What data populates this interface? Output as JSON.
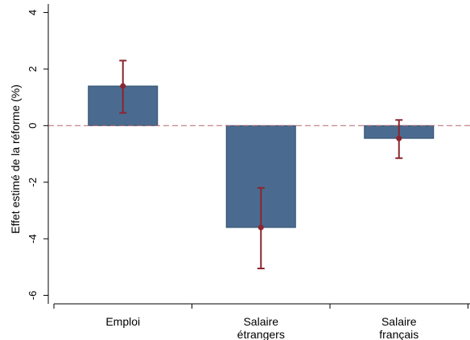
{
  "chart_data": {
    "type": "bar",
    "categories": [
      [
        "Emploi"
      ],
      [
        "Salaire",
        "étrangers"
      ],
      [
        "Salaire",
        "français"
      ]
    ],
    "values": [
      1.4,
      -3.6,
      -0.45
    ],
    "ci_low": [
      0.45,
      -5.05,
      -1.15
    ],
    "ci_high": [
      2.3,
      -2.2,
      0.2
    ],
    "ylabel": "Effet estimé de la réforme (%)",
    "yticks": [
      -6,
      -4,
      -2,
      0,
      2,
      4
    ],
    "ylim": [
      -6.3,
      4.3
    ],
    "zero_reference_line": true,
    "grid": false,
    "colors": {
      "bar_fill": "#4a6b8f",
      "bar_stroke": "#2f4d6e",
      "error_bar": "#8b2530",
      "reference_line": "#b5656e",
      "axis": "#000000"
    }
  }
}
